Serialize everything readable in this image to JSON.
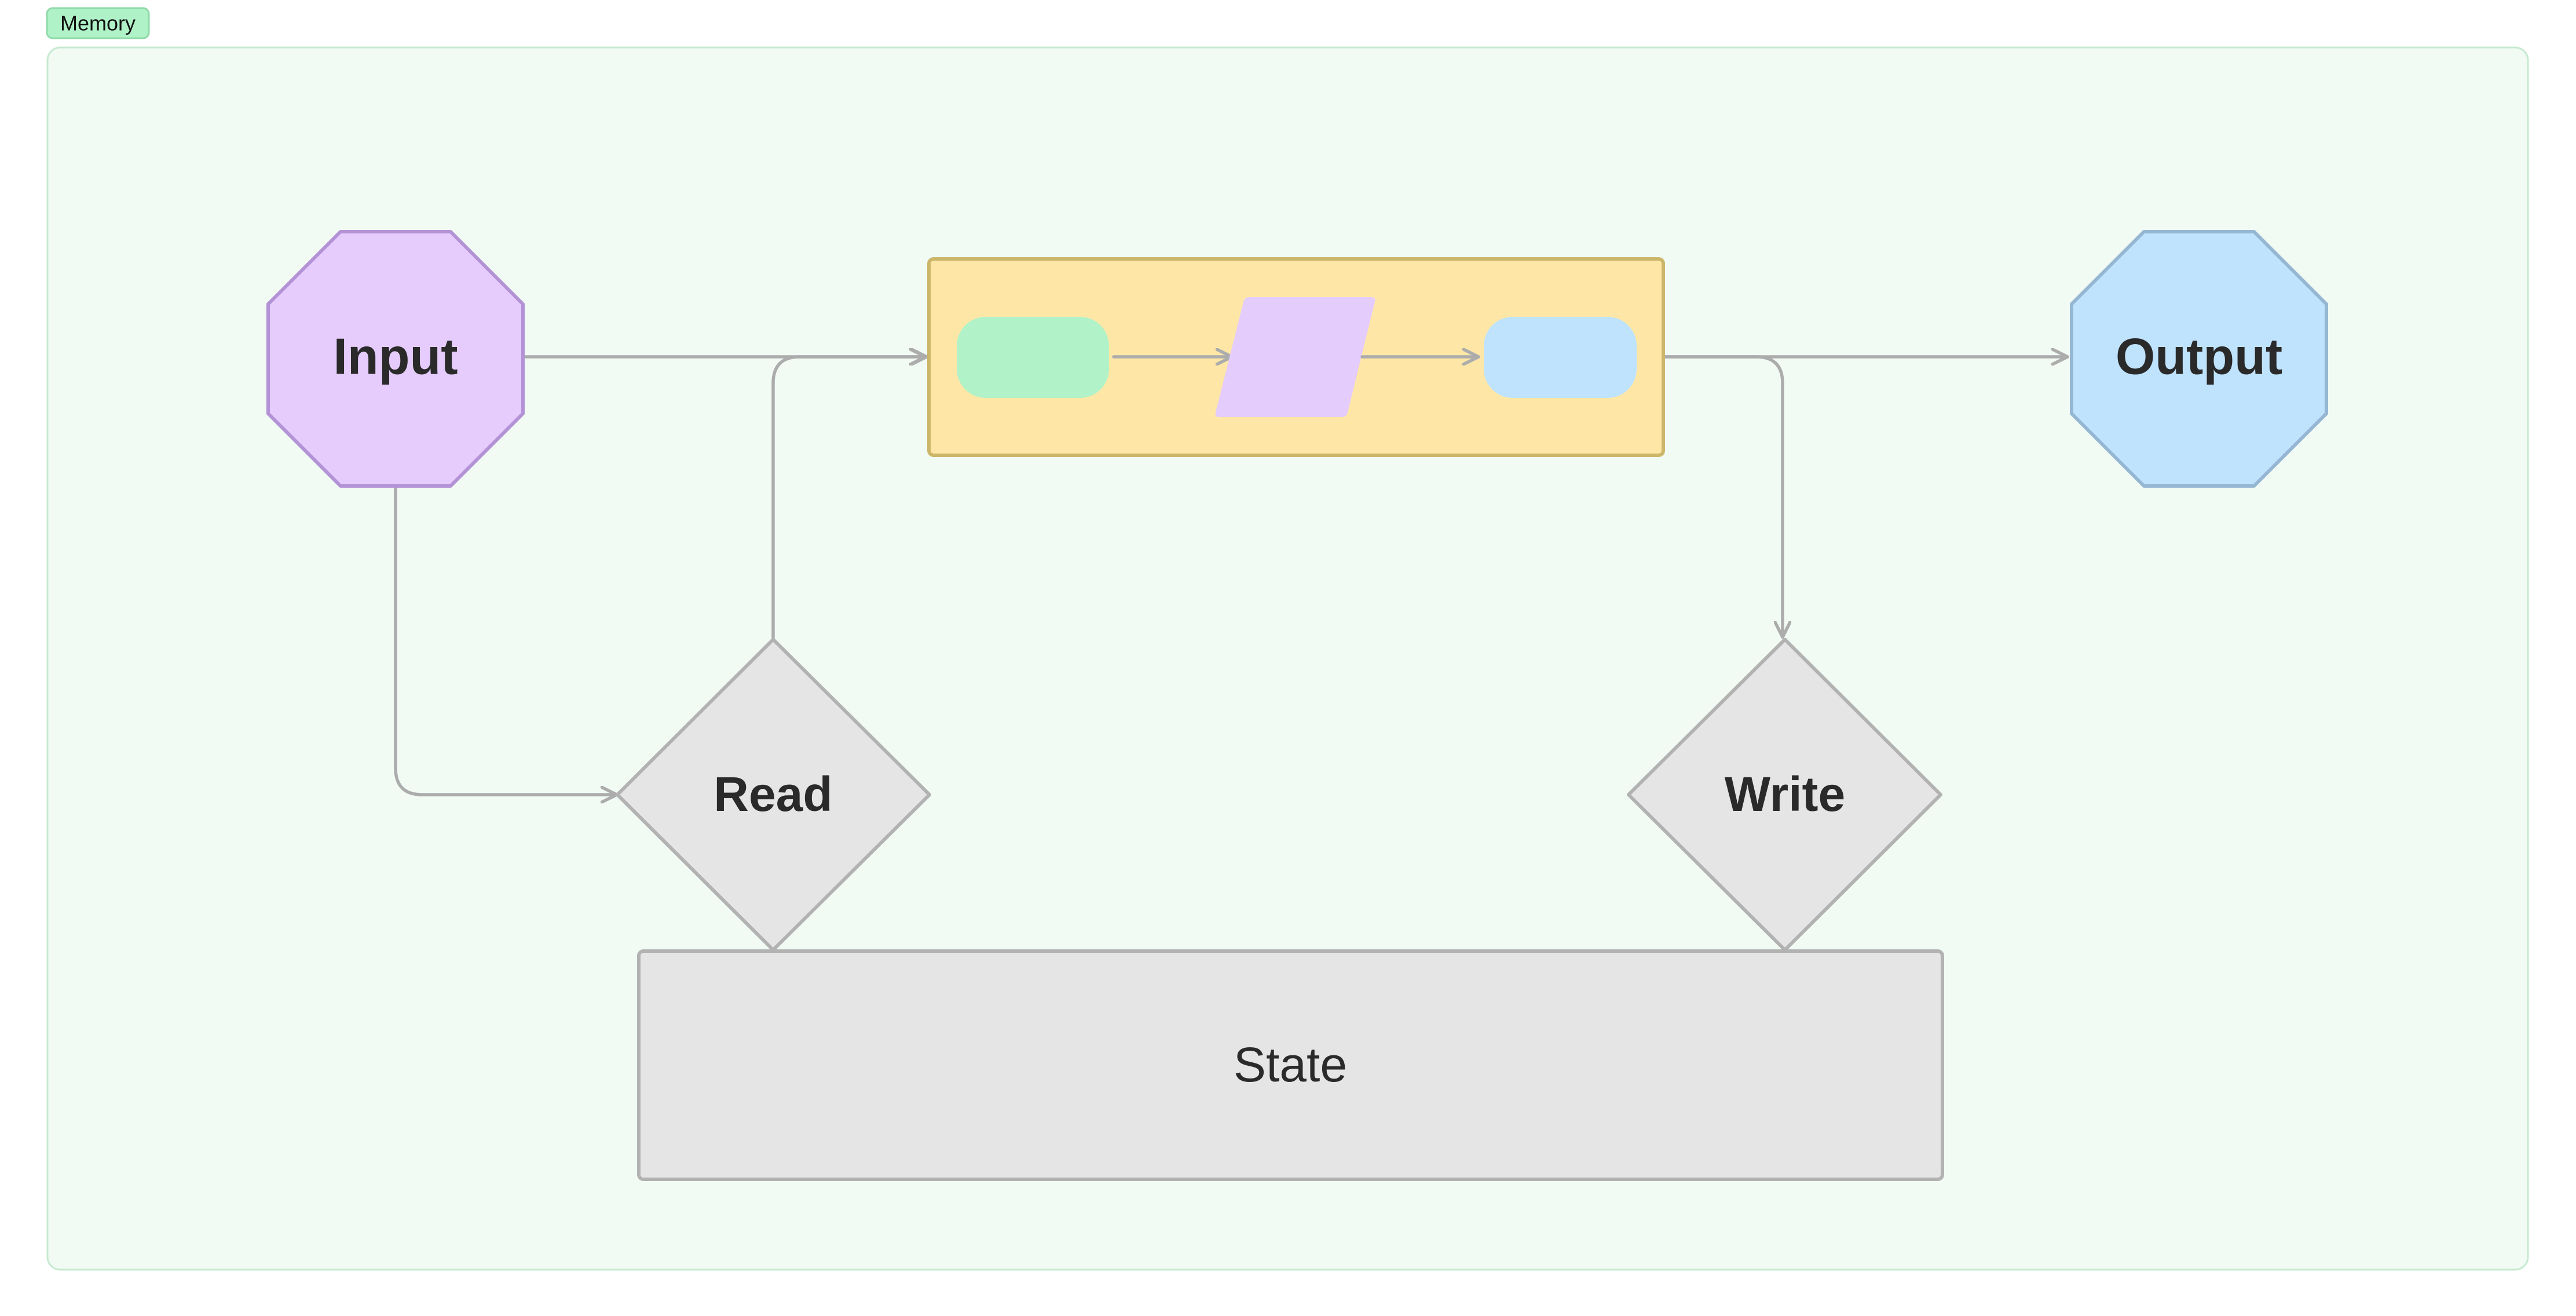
{
  "group": {
    "label": "Memory",
    "fill": "#f1fbf4",
    "stroke": "#c6ead0",
    "tag_fill": "#b0f2c7",
    "tag_stroke": "#8fd9a8"
  },
  "nodes": {
    "input": {
      "label": "Input",
      "shape": "octagon",
      "fill": "#e5ccfd",
      "stroke": "#b392d6"
    },
    "output": {
      "label": "Output",
      "shape": "octagon",
      "fill": "#bfe3fd",
      "stroke": "#96b7d3"
    },
    "read": {
      "label": "Read",
      "shape": "diamond",
      "fill": "#e5e5e5",
      "stroke": "#b2b2b2"
    },
    "write": {
      "label": "Write",
      "shape": "diamond",
      "fill": "#e5e5e5",
      "stroke": "#b2b2b2"
    },
    "state": {
      "label": "State",
      "shape": "rectangle",
      "fill": "#e5e5e5",
      "stroke": "#b2b2b2"
    },
    "process": {
      "label": "",
      "shape": "rectangle",
      "fill": "#fee7a6",
      "stroke": "#ccb66a",
      "children": [
        {
          "shape": "rounded-rectangle",
          "fill": "#b1f2c8"
        },
        {
          "shape": "parallelogram",
          "fill": "#e4ccfc"
        },
        {
          "shape": "rounded-rectangle",
          "fill": "#bfe3fd"
        }
      ]
    }
  },
  "edges": [
    {
      "from": "input",
      "to": "process"
    },
    {
      "from": "input",
      "to": "read"
    },
    {
      "from": "read",
      "to": "process"
    },
    {
      "from": "process",
      "to": "output"
    },
    {
      "from": "process",
      "to": "write"
    },
    {
      "from": "process.child1",
      "to": "process.child2"
    },
    {
      "from": "process.child2",
      "to": "process.child3"
    },
    {
      "from": "read",
      "to": "state",
      "arrow": false
    },
    {
      "from": "write",
      "to": "state",
      "arrow": false
    }
  ],
  "colors": {
    "edge": "#acacac",
    "text": "#2a2a2a"
  }
}
